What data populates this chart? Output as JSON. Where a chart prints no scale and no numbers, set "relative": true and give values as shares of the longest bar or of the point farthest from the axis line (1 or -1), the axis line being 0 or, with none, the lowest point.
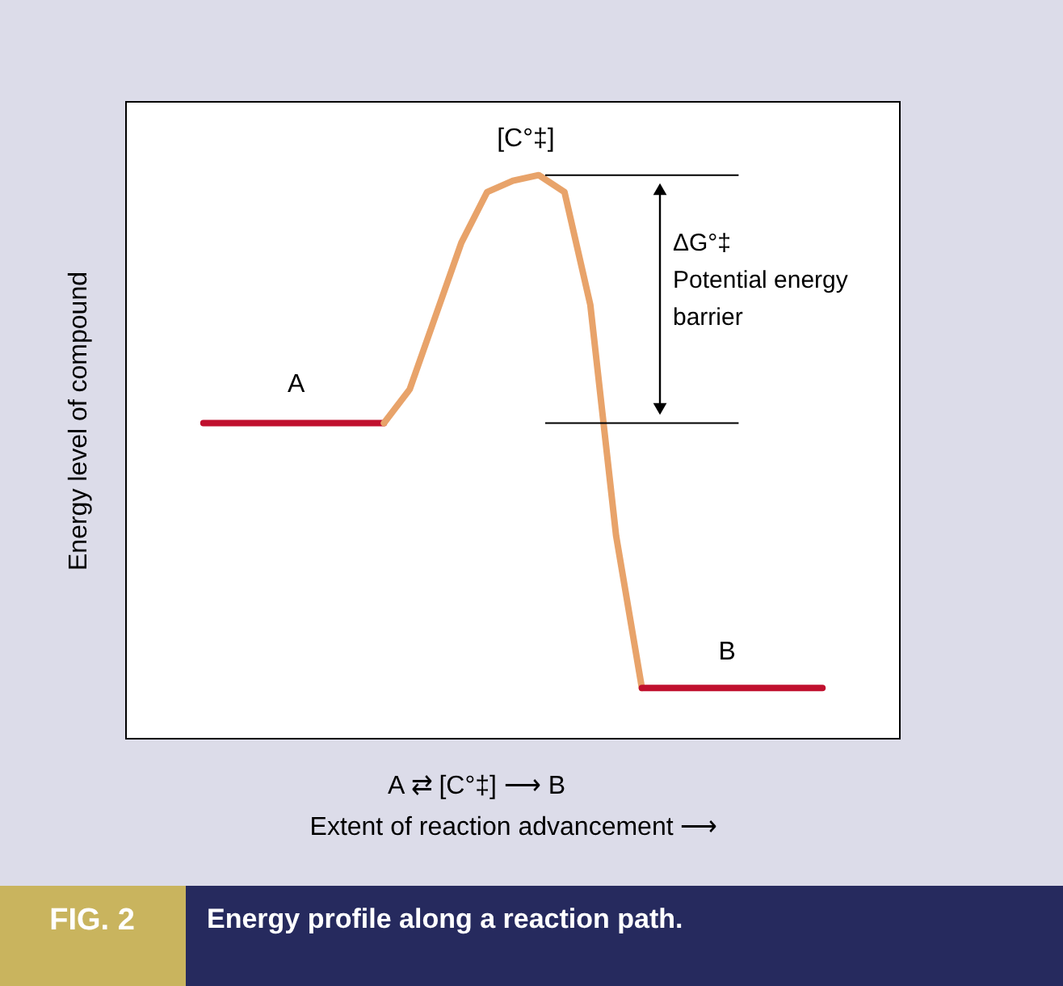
{
  "chart_data": {
    "type": "line",
    "relative": true,
    "title": "Energy profile along a reaction path.",
    "subtitle": "FIG. 2",
    "xlabel": "Extent of reaction advancement ⟶",
    "ylabel": "Energy level of compound",
    "categories": [
      null,
      null,
      null,
      null,
      null,
      null,
      null,
      null,
      null,
      null,
      null,
      null,
      null,
      null,
      null,
      null,
      null,
      null,
      null,
      null,
      null,
      null,
      null,
      null,
      null,
      null,
      null,
      null,
      null,
      null,
      null
    ],
    "series": [
      {
        "color": "#c0102e",
        "values": [
          null,
          null,
          null,
          0.56,
          0.56,
          0.56,
          0.56,
          0.56,
          0.56,
          0.56,
          0.56,
          null,
          null,
          null,
          null,
          null,
          null,
          null,
          null,
          null,
          null,
          null,
          null,
          null,
          null,
          null,
          null,
          null,
          null,
          null,
          null
        ]
      },
      {
        "color": "#e8a36a",
        "values": [
          null,
          null,
          null,
          null,
          null,
          null,
          null,
          null,
          null,
          null,
          0.56,
          0.62,
          0.75,
          0.88,
          0.97,
          0.99,
          1.0,
          0.97,
          0.77,
          0.36,
          0.09,
          null,
          null,
          null,
          null,
          null,
          null,
          null,
          null,
          null,
          null
        ]
      },
      {
        "color": "#c0102e",
        "values": [
          null,
          null,
          null,
          null,
          null,
          null,
          null,
          null,
          null,
          null,
          null,
          null,
          null,
          null,
          null,
          null,
          null,
          null,
          null,
          null,
          0.09,
          0.09,
          0.09,
          0.09,
          0.09,
          0.09,
          0.09,
          0.09,
          null,
          null,
          null
        ]
      }
    ],
    "ref_lines": [
      {
        "axis": "y",
        "value": 1.0,
        "color": "#000000"
      },
      {
        "axis": "y",
        "value": 0.56,
        "color": "#000000"
      }
    ],
    "annotations": [
      "[C°‡]",
      "A",
      "B",
      "ΔG°‡\nPotential energy\nbarrier",
      "A ⇄ [C°‡] ⟶ B"
    ],
    "grid": false,
    "legend": false
  }
}
